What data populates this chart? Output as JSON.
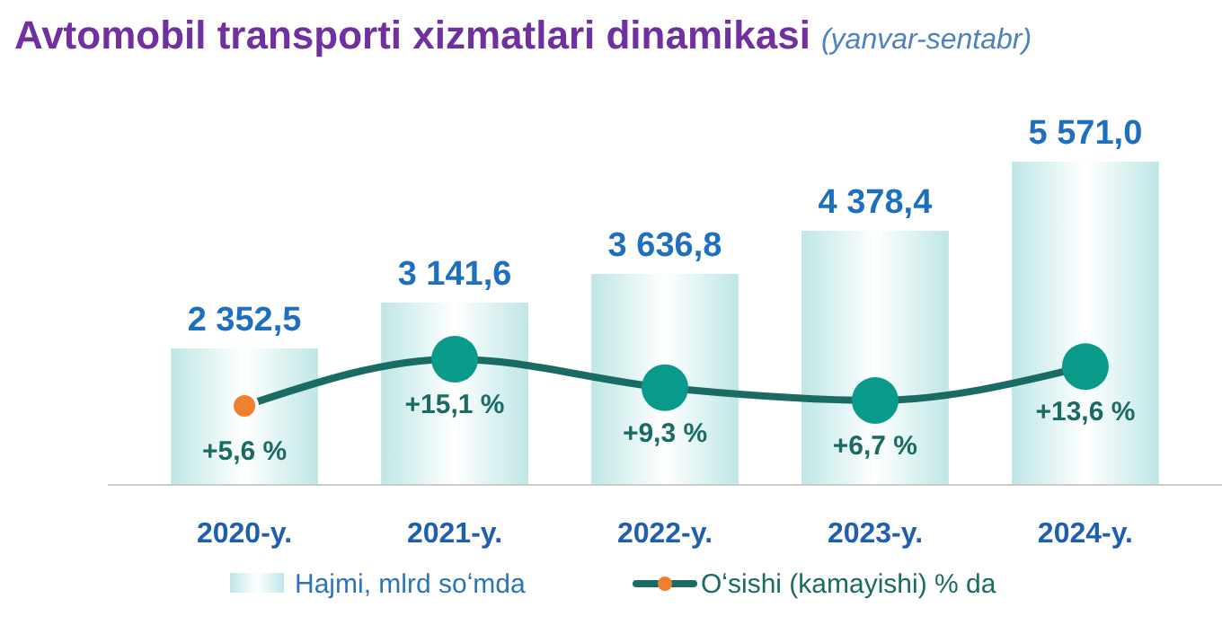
{
  "chart_data": {
    "type": "bar",
    "title": "Avtomobil transporti xizmatlari dinamikasi",
    "subtitle": "(yanvar-sentabr)",
    "categories": [
      "2020-y.",
      "2021-y.",
      "2022-y.",
      "2023-y.",
      "2024-y."
    ],
    "legend": "bottom",
    "grid": false,
    "series": [
      {
        "name": "Hajmi, mlrd soʻmda",
        "color": "#bfe6e6",
        "values": [
          2352.5,
          3141.6,
          3636.8,
          4378.4,
          5571.0
        ],
        "value_labels": [
          "2 352,5",
          "3 141,6",
          "3 636,8",
          "4 378,4",
          "5 571,0"
        ]
      },
      {
        "name": "Oʻsishi (kamayishi) % da",
        "type": "line",
        "axis": "y2",
        "color": "#1a6b63",
        "colors": [
          "#f08030",
          "#0a9a8c",
          "#0a9a8c",
          "#0a9a8c",
          "#0a9a8c"
        ],
        "marker": "circle",
        "values": [
          5.6,
          15.1,
          9.3,
          6.7,
          13.6
        ],
        "value_labels": [
          "+5,6 %",
          "+15,1 %",
          "+9,3 %",
          "+6,7 %",
          "+13,6 %"
        ]
      }
    ]
  }
}
